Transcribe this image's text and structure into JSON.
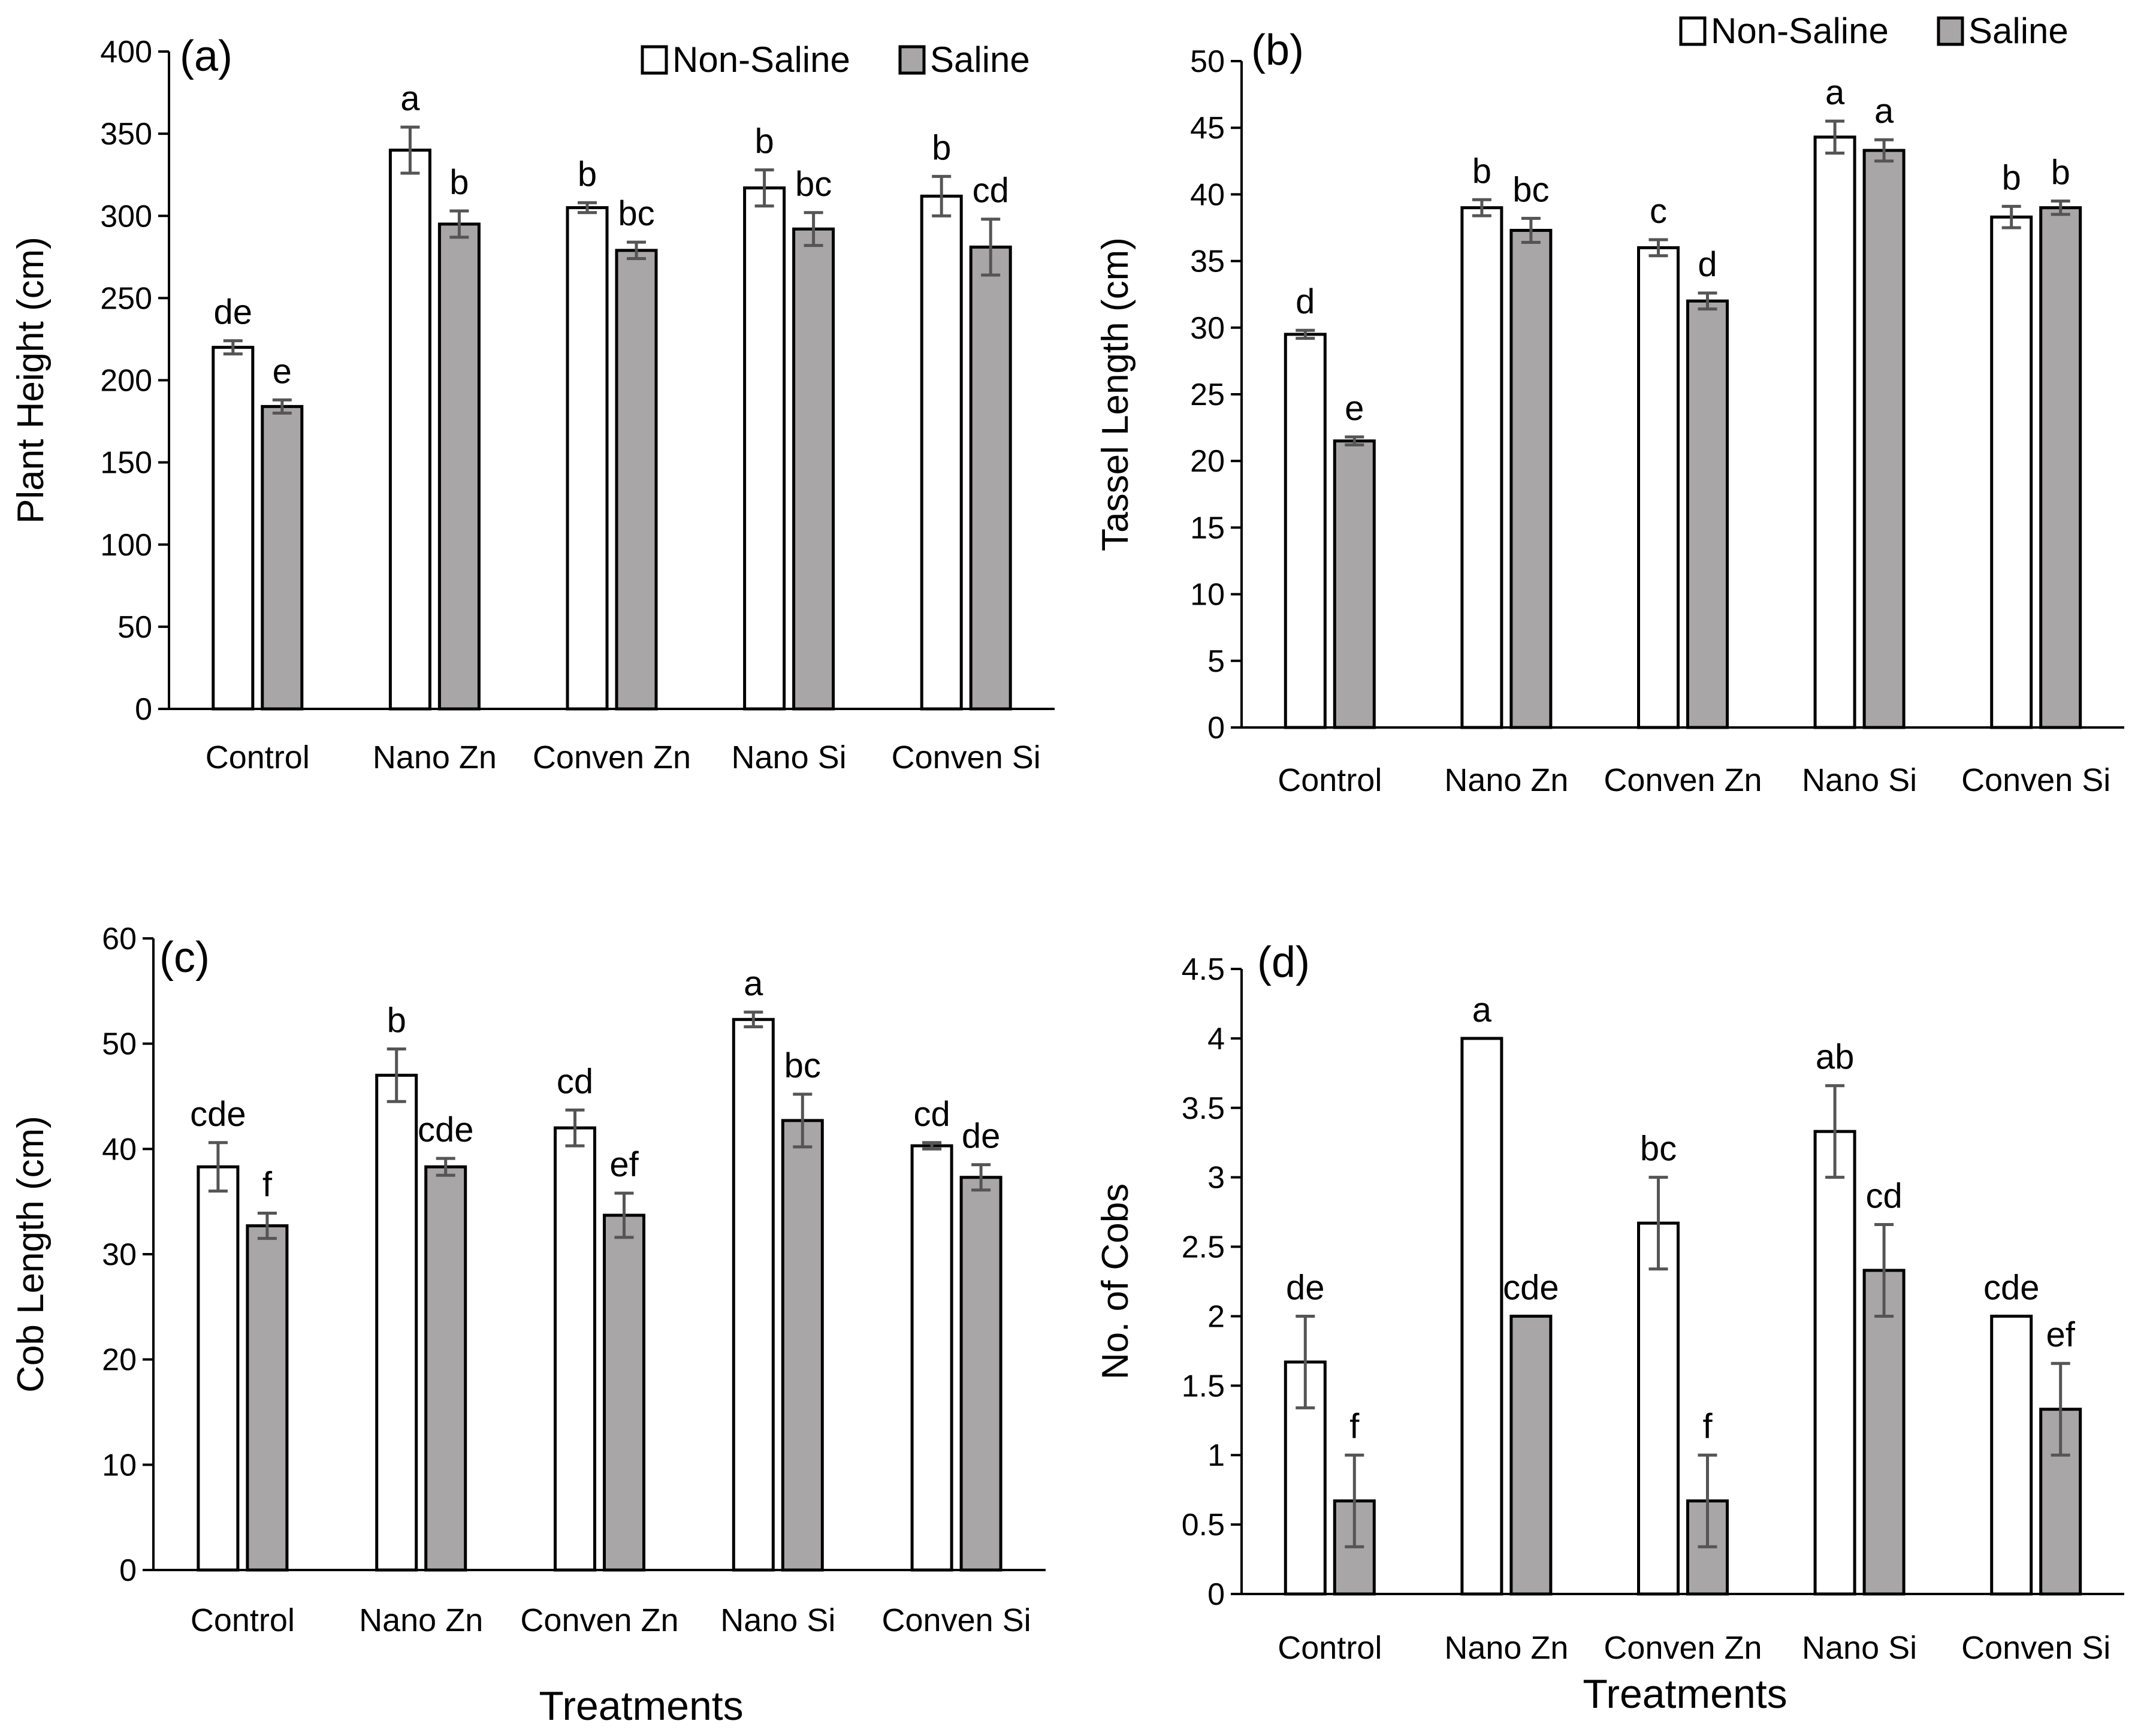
{
  "colors": {
    "non_saline_fill": "#ffffff",
    "saline_fill": "#a8a6a6",
    "bar_stroke": "#000000",
    "axis": "#000000",
    "error_bar": "#555555"
  },
  "legend": {
    "non_saline": "Non-Saline",
    "saline": "Saline"
  },
  "xlabel_bottom": "Treatments",
  "chart_data": [
    {
      "type": "bar",
      "panel": "(a)",
      "ylabel": "Plant Height (cm)",
      "categories": [
        "Control",
        "Nano Zn",
        "Conven Zn",
        "Nano Si",
        "Conven Si"
      ],
      "ylim": [
        0,
        400
      ],
      "yticks": [
        0,
        50,
        100,
        150,
        200,
        250,
        300,
        350,
        400
      ],
      "legend_position": "top-right",
      "series": [
        {
          "name": "Non-Saline",
          "values": [
            220,
            340,
            305,
            317,
            312
          ],
          "errors": [
            4,
            14,
            3,
            11,
            12
          ],
          "letters": [
            "de",
            "a",
            "b",
            "b",
            "b"
          ]
        },
        {
          "name": "Saline",
          "values": [
            184,
            295,
            279,
            292,
            281
          ],
          "errors": [
            4,
            8,
            5,
            10,
            17
          ],
          "letters": [
            "e",
            "b",
            "bc",
            "bc",
            "cd"
          ]
        }
      ]
    },
    {
      "type": "bar",
      "panel": "(b)",
      "ylabel": "Tassel Length (cm)",
      "categories": [
        "Control",
        "Nano Zn",
        "Conven Zn",
        "Nano Si",
        "Conven Si"
      ],
      "ylim": [
        0,
        50
      ],
      "yticks": [
        0,
        5,
        10,
        15,
        20,
        25,
        30,
        35,
        40,
        45,
        50
      ],
      "legend_position": "top-right",
      "series": [
        {
          "name": "Non-Saline",
          "values": [
            29.5,
            39,
            36,
            44.3,
            38.3
          ],
          "errors": [
            0.3,
            0.6,
            0.6,
            1.2,
            0.8
          ],
          "letters": [
            "d",
            "b",
            "c",
            "a",
            "b"
          ]
        },
        {
          "name": "Saline",
          "values": [
            21.5,
            37.3,
            32,
            43.3,
            39
          ],
          "errors": [
            0.3,
            0.9,
            0.6,
            0.8,
            0.5
          ],
          "letters": [
            "e",
            "bc",
            "d",
            "a",
            "b"
          ]
        }
      ]
    },
    {
      "type": "bar",
      "panel": "(c)",
      "ylabel": "Cob Length (cm)",
      "xlabel": "Treatments",
      "categories": [
        "Control",
        "Nano Zn",
        "Conven Zn",
        "Nano Si",
        "Conven Si"
      ],
      "ylim": [
        0,
        60
      ],
      "yticks": [
        0,
        10,
        20,
        30,
        40,
        50,
        60
      ],
      "series": [
        {
          "name": "Non-Saline",
          "values": [
            38.3,
            47,
            42,
            52.3,
            40.3
          ],
          "errors": [
            2.3,
            2.5,
            1.7,
            0.7,
            0.3
          ],
          "letters": [
            "cde",
            "b",
            "cd",
            "a",
            "cd"
          ]
        },
        {
          "name": "Saline",
          "values": [
            32.7,
            38.3,
            33.7,
            42.7,
            37.3
          ],
          "errors": [
            1.2,
            0.8,
            2.1,
            2.5,
            1.2
          ],
          "letters": [
            "f",
            "cde",
            "ef",
            "bc",
            "de"
          ]
        }
      ]
    },
    {
      "type": "bar",
      "panel": "(d)",
      "ylabel": "No. of Cobs",
      "xlabel": "Treatments",
      "categories": [
        "Control",
        "Nano Zn",
        "Conven Zn",
        "Nano Si",
        "Conven Si"
      ],
      "ylim": [
        0,
        4.5
      ],
      "yticks": [
        0,
        0.5,
        1,
        1.5,
        2,
        2.5,
        3,
        3.5,
        4,
        4.5
      ],
      "series": [
        {
          "name": "Non-Saline",
          "values": [
            1.67,
            4,
            2.67,
            3.33,
            2
          ],
          "errors": [
            0.33,
            0,
            0.33,
            0.33,
            0
          ],
          "letters": [
            "de",
            "a",
            "bc",
            "ab",
            "cde"
          ]
        },
        {
          "name": "Saline",
          "values": [
            0.67,
            2,
            0.67,
            2.33,
            1.33
          ],
          "errors": [
            0.33,
            0,
            0.33,
            0.33,
            0.33
          ],
          "letters": [
            "f",
            "cde",
            "f",
            "cd",
            "ef"
          ]
        }
      ]
    }
  ]
}
